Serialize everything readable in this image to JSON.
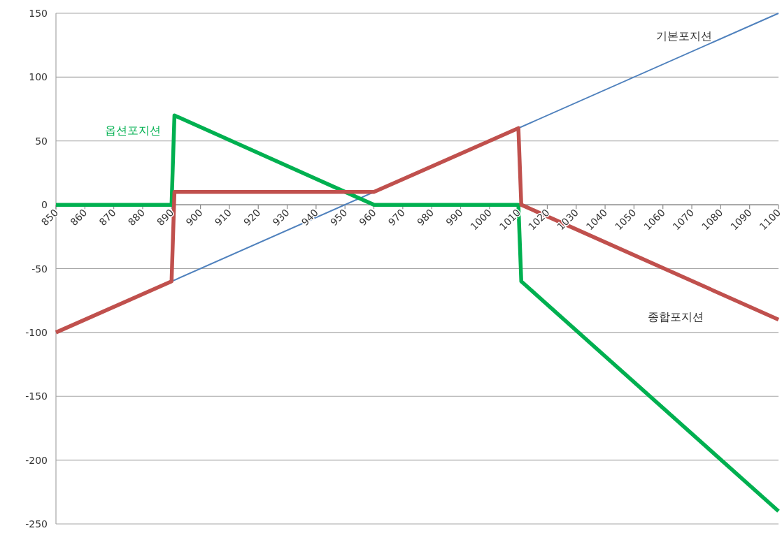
{
  "chart_data": {
    "type": "line",
    "xlim": [
      850,
      1100
    ],
    "ylim": [
      -250,
      150
    ],
    "xticks": [
      850,
      860,
      870,
      880,
      890,
      900,
      910,
      920,
      930,
      940,
      950,
      960,
      970,
      980,
      990,
      1000,
      1010,
      1020,
      1030,
      1040,
      1050,
      1060,
      1070,
      1080,
      1090,
      1100
    ],
    "yticks": [
      -250,
      -200,
      -150,
      -100,
      -50,
      0,
      50,
      100,
      150
    ],
    "grid": "y",
    "series": [
      {
        "name": "기본포지션",
        "color": "#4f81bd",
        "x": [
          850,
          1100
        ],
        "values": [
          -100,
          150
        ]
      },
      {
        "name": "옵션포지션",
        "color": "#00b050",
        "x": [
          850,
          890,
          891,
          960,
          1010,
          1011,
          1100
        ],
        "values": [
          0,
          0,
          70,
          0,
          0,
          -60,
          -240
        ]
      },
      {
        "name": "종합포지션",
        "color": "#c0504d",
        "x": [
          850,
          890,
          891,
          960,
          1010,
          1011,
          1100
        ],
        "values": [
          -100,
          -60,
          10,
          10,
          60,
          0,
          -90
        ]
      }
    ]
  }
}
